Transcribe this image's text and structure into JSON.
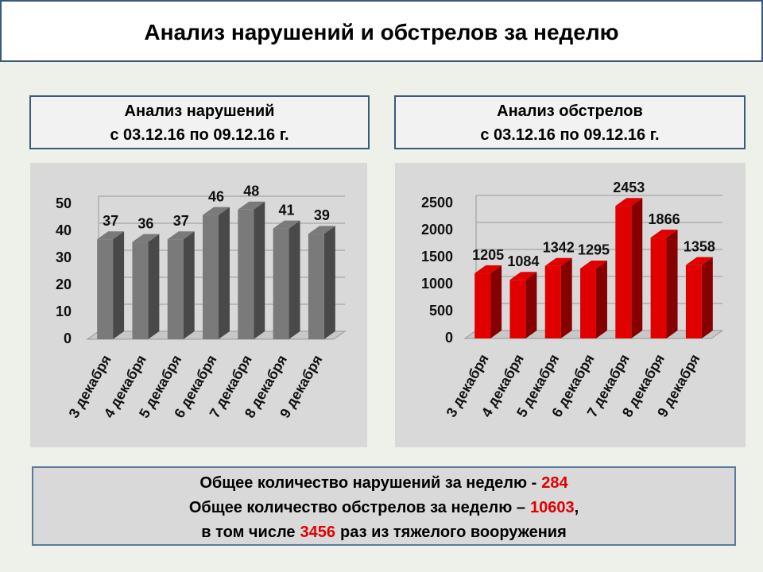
{
  "header": {
    "title": "Анализ нарушений и обстрелов за неделю"
  },
  "chart_data": [
    {
      "type": "bar3d",
      "title": "Анализ нарушений",
      "subtitle": "с 03.12.16 по 09.12.16 г.",
      "categories": [
        "3 декабря",
        "4 декабря",
        "5 декабря",
        "6 декабря",
        "7 декабря",
        "8 декабря",
        "9 декабря"
      ],
      "values": [
        37,
        36,
        37,
        46,
        48,
        41,
        39
      ],
      "color": "#7a7a7a",
      "ylim": [
        0,
        50
      ],
      "yticks": [
        0,
        10,
        20,
        30,
        40,
        50
      ],
      "grid": true,
      "data_labels": true
    },
    {
      "type": "bar3d",
      "title": "Анализ обстрелов",
      "subtitle": "с 03.12.16 по 09.12.16 г.",
      "categories": [
        "3 декабря",
        "4 декабря",
        "5 декабря",
        "6 декабря",
        "7 декабря",
        "8 декабря",
        "9 декабря"
      ],
      "values": [
        1205,
        1084,
        1342,
        1295,
        2453,
        1866,
        1358
      ],
      "color": "#e00000",
      "ylim": [
        0,
        2500
      ],
      "yticks": [
        0,
        500,
        1000,
        1500,
        2000,
        2500
      ],
      "grid": true,
      "data_labels": true
    }
  ],
  "summary": {
    "lines": [
      {
        "text": "Общее количество нарушений за неделю -",
        "value": "284"
      },
      {
        "text": "Общее количество обстрелов за неделю –",
        "value": "10603",
        "after": ","
      },
      {
        "text": "в том числе",
        "value": "3456",
        "after": "раз из тяжелого вооружения"
      }
    ]
  }
}
